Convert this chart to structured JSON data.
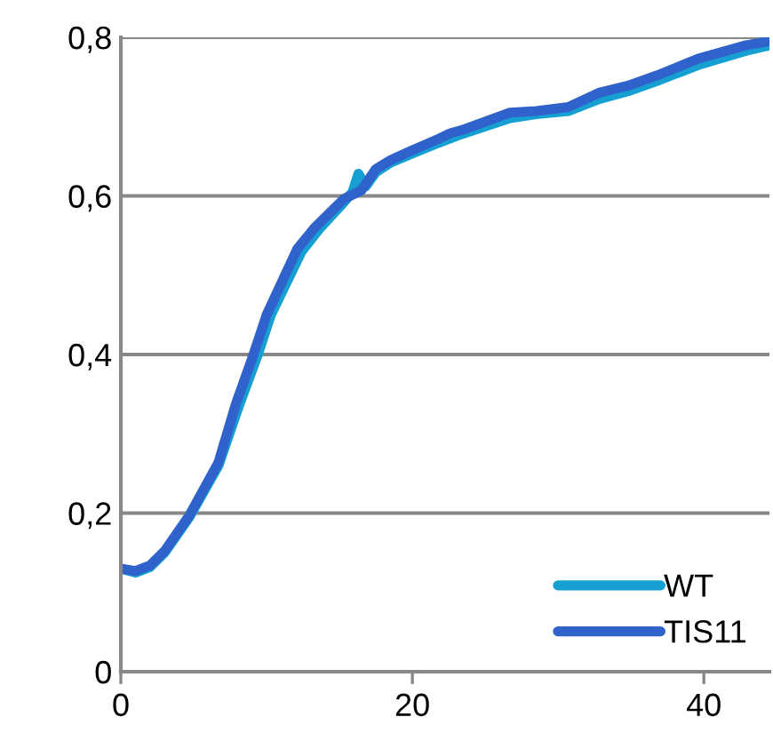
{
  "chart_data": {
    "type": "line",
    "series": [
      {
        "name": "WT",
        "color": "#16a0d2",
        "x": [
          0,
          1,
          2,
          3,
          4.7,
          6.7,
          8.1,
          9.4,
          10.3,
          12.4,
          13.6,
          15.3,
          15.9,
          16.3,
          16.8,
          17.5,
          18.5,
          19.8,
          21.8,
          23.4,
          26.7,
          28.5,
          30.7,
          32.8,
          34.8,
          36.8,
          39.6,
          42.9,
          44.5
        ],
        "values": [
          0.13,
          0.125,
          0.132,
          0.15,
          0.195,
          0.26,
          0.335,
          0.4,
          0.45,
          0.53,
          0.558,
          0.592,
          0.605,
          0.628,
          0.612,
          0.63,
          0.642,
          0.652,
          0.667,
          0.678,
          0.698,
          0.703,
          0.707,
          0.722,
          0.732,
          0.745,
          0.765,
          0.783,
          0.79
        ]
      },
      {
        "name": "TIS11",
        "color": "#2f62cb",
        "x": [
          0,
          1,
          2,
          3,
          4.7,
          6.7,
          7.9,
          9.1,
          10.0,
          12.1,
          13.3,
          15.3,
          16.5,
          17.5,
          18.5,
          19.8,
          21.8,
          22.6,
          23.4,
          26.7,
          28.5,
          30.7,
          32.8,
          34.8,
          36.8,
          39.6,
          42.9,
          44.5
        ],
        "values": [
          0.13,
          0.127,
          0.134,
          0.152,
          0.197,
          0.264,
          0.338,
          0.4,
          0.45,
          0.533,
          0.56,
          0.596,
          0.607,
          0.634,
          0.645,
          0.656,
          0.672,
          0.679,
          0.683,
          0.705,
          0.707,
          0.712,
          0.73,
          0.739,
          0.752,
          0.773,
          0.79,
          0.795
        ]
      }
    ],
    "xlim": [
      0,
      44.5
    ],
    "xticks": [
      0,
      20,
      40
    ],
    "ylim": [
      0,
      0.8
    ],
    "yticks": [
      {
        "value": 0,
        "label": "0"
      },
      {
        "value": 0.2,
        "label": "0,2"
      },
      {
        "value": 0.4,
        "label": "0,4"
      },
      {
        "value": 0.6,
        "label": "0,6"
      },
      {
        "value": 0.8,
        "label": "0,8"
      }
    ],
    "grid": "y",
    "legend": "bottom right",
    "marker": "none",
    "line_style": "solid"
  }
}
